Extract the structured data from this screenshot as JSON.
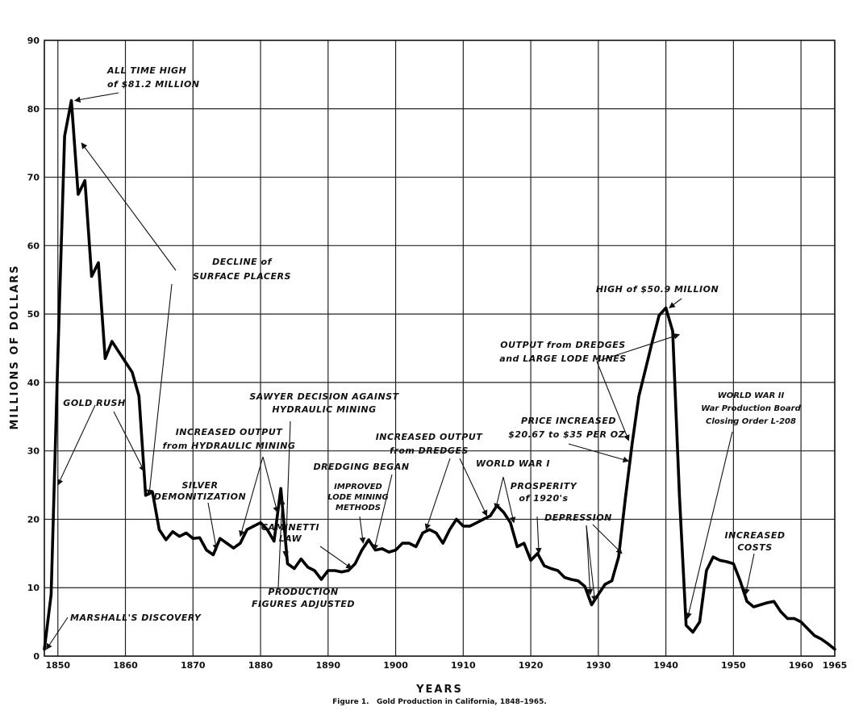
{
  "chart_data": {
    "type": "line",
    "title": "",
    "xlabel": "YEARS",
    "ylabel": "MILLIONS OF DOLLARS",
    "caption": "Figure 1.   Gold Production in California, 1848–1965.",
    "xlim": [
      1848,
      1965
    ],
    "ylim": [
      0,
      90
    ],
    "grid": true,
    "x_ticks": [
      1850,
      1860,
      1870,
      1880,
      1890,
      1900,
      1910,
      1920,
      1930,
      1940,
      1950,
      1960,
      1965
    ],
    "x_tick_labels": [
      "1850",
      "1860",
      "1870",
      "1880",
      "1890",
      "1900",
      "1910",
      "1920",
      "1930",
      "1940",
      "1950",
      "1960",
      "1965"
    ],
    "y_ticks": [
      0,
      10,
      20,
      30,
      40,
      50,
      60,
      70,
      80,
      90
    ],
    "y_tick_labels": [
      "0",
      "10",
      "20",
      "30",
      "40",
      "50",
      "60",
      "70",
      "80",
      "90"
    ],
    "series": [
      {
        "x": [
          1848,
          1849,
          1850,
          1851,
          1852,
          1853,
          1854,
          1855,
          1856,
          1857,
          1858,
          1859,
          1860,
          1861,
          1862,
          1863,
          1864,
          1865,
          1866,
          1867,
          1868,
          1869,
          1870,
          1871,
          1872,
          1873,
          1874,
          1875,
          1876,
          1877,
          1878,
          1879,
          1880,
          1881,
          1882,
          1883,
          1884,
          1885,
          1886,
          1887,
          1888,
          1889,
          1890,
          1891,
          1892,
          1893,
          1894,
          1895,
          1896,
          1897,
          1898,
          1899,
          1900,
          1901,
          1902,
          1903,
          1904,
          1905,
          1906,
          1907,
          1908,
          1909,
          1910,
          1911,
          1912,
          1913,
          1914,
          1915,
          1916,
          1917,
          1918,
          1919,
          1920,
          1921,
          1922,
          1923,
          1924,
          1925,
          1926,
          1927,
          1928,
          1929,
          1930,
          1931,
          1932,
          1933,
          1934,
          1935,
          1936,
          1937,
          1938,
          1939,
          1940,
          1941,
          1942,
          1943,
          1944,
          1945,
          1946,
          1947,
          1948,
          1949,
          1950,
          1951,
          1952,
          1953,
          1954,
          1955,
          1956,
          1957,
          1958,
          1959,
          1960,
          1961,
          1962,
          1963,
          1964,
          1965
        ],
        "values": [
          1.0,
          9.0,
          44.0,
          76.0,
          81.2,
          67.5,
          69.5,
          55.5,
          57.5,
          43.5,
          46.0,
          44.5,
          43.0,
          41.5,
          38.0,
          23.5,
          24.0,
          18.5,
          17.0,
          18.2,
          17.5,
          18.0,
          17.2,
          17.3,
          15.5,
          14.8,
          17.2,
          16.5,
          15.8,
          16.5,
          18.5,
          19.0,
          19.5,
          18.5,
          16.8,
          24.5,
          13.5,
          12.8,
          14.2,
          13.0,
          12.5,
          11.2,
          12.5,
          12.5,
          12.3,
          12.5,
          13.5,
          15.5,
          17.0,
          15.5,
          15.7,
          15.2,
          15.5,
          16.5,
          16.5,
          16.0,
          18.0,
          18.5,
          18.0,
          16.5,
          18.5,
          20.0,
          19.0,
          19.0,
          19.5,
          20.0,
          20.5,
          22.0,
          21.0,
          19.5,
          16.0,
          16.5,
          14.0,
          15.0,
          13.2,
          12.8,
          12.5,
          11.5,
          11.2,
          11.0,
          10.2,
          7.5,
          9.0,
          10.5,
          11.0,
          14.5,
          23.0,
          31.0,
          38.0,
          42.0,
          46.0,
          49.8,
          50.9,
          47.5,
          23.5,
          4.5,
          3.5,
          5.0,
          12.5,
          14.5,
          14.0,
          13.8,
          13.5,
          11.0,
          8.0,
          7.2,
          7.5,
          7.8,
          8.0,
          6.5,
          5.5,
          5.5,
          5.0,
          4.0,
          3.0,
          2.5,
          1.8,
          1.0
        ]
      }
    ],
    "annotations": [
      {
        "lines": [
          "ALL TIME HIGH",
          "of $81.2 MILLION"
        ],
        "arrow_to": [
          1852.5,
          81.2
        ]
      },
      {
        "lines": [
          "DECLINE of",
          "SURFACE PLACERS"
        ],
        "arrow_to": [
          [
            1853.5,
            75.0
          ],
          [
            1863.5,
            23.5
          ]
        ]
      },
      {
        "lines": [
          "GOLD RUSH"
        ],
        "arrow_to": [
          [
            1850.0,
            25.0
          ],
          [
            1862.8,
            27.0
          ]
        ]
      },
      {
        "lines": [
          "MARSHALL'S DISCOVERY"
        ],
        "arrow_to": [
          1848.3,
          1.0
        ]
      },
      {
        "lines": [
          "INCREASED OUTPUT",
          "from HYDRAULIC MINING"
        ],
        "arrow_to": [
          [
            1877.0,
            17.5
          ],
          [
            1882.5,
            21.0
          ]
        ]
      },
      {
        "lines": [
          "SILVER",
          "DEMONITIZATION"
        ],
        "arrow_to": [
          1873.5,
          15.5
        ]
      },
      {
        "lines": [
          "SAWYER DECISION AGAINST",
          "HYDRAULIC MINING"
        ],
        "arrow_to": [
          1883.7,
          14.5
        ]
      },
      {
        "lines": [
          "PRODUCTION",
          "FIGURES ADJUSTED"
        ],
        "arrow_to": [
          1883.2,
          23.0
        ]
      },
      {
        "lines": [
          "CAMINETTI",
          "LAW"
        ],
        "arrow_to": [
          1893.5,
          12.8
        ]
      },
      {
        "lines": [
          "DREDGING BEGAN"
        ],
        "arrow_to": [
          1896.8,
          15.5
        ]
      },
      {
        "lines": [
          "IMPROVED",
          "LODE MINING",
          "METHODS"
        ],
        "arrow_to": [
          1895.2,
          16.5
        ]
      },
      {
        "lines": [
          "INCREASED OUTPUT",
          "from DREDGES"
        ],
        "arrow_to": [
          [
            1904.5,
            18.5
          ],
          [
            1913.5,
            20.5
          ]
        ]
      },
      {
        "lines": [
          "WORLD WAR I"
        ],
        "arrow_to": [
          [
            1914.8,
            21.5
          ],
          [
            1917.5,
            19.5
          ]
        ]
      },
      {
        "lines": [
          "PROSPERITY",
          "of 1920's"
        ],
        "arrow_to": [
          1921.2,
          15.0
        ]
      },
      {
        "lines": [
          "PRICE INCREASED",
          "$20.67 to $35 PER OZ."
        ],
        "arrow_to": [
          1934.5,
          28.5
        ]
      },
      {
        "lines": [
          "DEPRESSION"
        ],
        "arrow_to": [
          [
            1928.8,
            9.0
          ],
          [
            1929.5,
            8.0
          ],
          [
            1933.5,
            15.0
          ]
        ]
      },
      {
        "lines": [
          "OUTPUT from DREDGES",
          "and LARGE LODE MINES"
        ],
        "arrow_to": [
          [
            1934.5,
            31.5
          ],
          [
            1942.0,
            47.0
          ]
        ]
      },
      {
        "lines": [
          "HIGH of $50.9 MILLION"
        ],
        "arrow_to": [
          1940.5,
          50.9
        ]
      },
      {
        "lines": [
          "WORLD WAR II",
          "War Production Board",
          "Closing Order L-208"
        ],
        "arrow_to": [
          1943.2,
          5.5
        ]
      },
      {
        "lines": [
          "INCREASED",
          "COSTS"
        ],
        "arrow_to": [
          1951.8,
          9.0
        ]
      }
    ]
  }
}
